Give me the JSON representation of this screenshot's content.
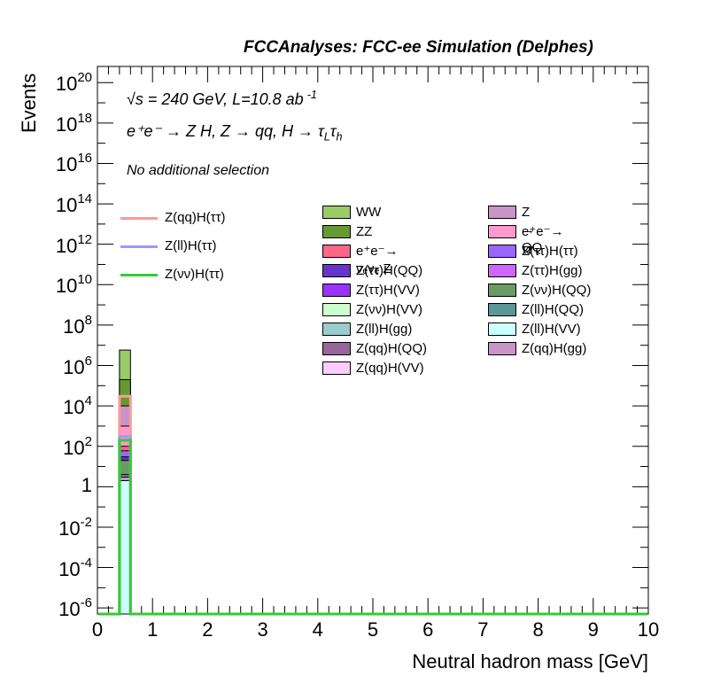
{
  "chart_data": {
    "type": "bar",
    "title": "FCCAnalyses: FCC-ee Simulation (Delphes)",
    "xlabel": "Neutral hadron mass [GeV]",
    "ylabel": "Events",
    "xlim": [
      0,
      10
    ],
    "ylim_log10": [
      -6.3,
      20.8
    ],
    "log_y": true,
    "grid": false,
    "x_ticks": [
      "0",
      "1",
      "2",
      "3",
      "4",
      "5",
      "6",
      "7",
      "8",
      "9",
      "10"
    ],
    "y_ticks": [
      {
        "base": "10",
        "exp": "20",
        "log": 20
      },
      {
        "base": "10",
        "exp": "18",
        "log": 18
      },
      {
        "base": "10",
        "exp": "16",
        "log": 16
      },
      {
        "base": "10",
        "exp": "14",
        "log": 14
      },
      {
        "base": "10",
        "exp": "12",
        "log": 12
      },
      {
        "base": "10",
        "exp": "10",
        "log": 10
      },
      {
        "base": "10",
        "exp": "8",
        "log": 8
      },
      {
        "base": "10",
        "exp": "6",
        "log": 6
      },
      {
        "base": "10",
        "exp": "4",
        "log": 4
      },
      {
        "base": "10",
        "exp": "2",
        "log": 2
      },
      {
        "base": "1",
        "exp": "",
        "log": 0
      },
      {
        "base": "10",
        "exp": "-2",
        "log": -2
      },
      {
        "base": "10",
        "exp": "-4",
        "log": -4
      },
      {
        "base": "10",
        "exp": "-6",
        "log": -6
      }
    ],
    "bin": [
      0.4,
      0.6
    ],
    "stacked_total": 6000000,
    "stack": [
      {
        "name": "Z(qq)H(gg)",
        "color": "#c994c7",
        "value": 3
      },
      {
        "name": "Z(ll)H(VV)",
        "color": "#ccffff",
        "value": 2
      },
      {
        "name": "Z(ll)H(QQ)",
        "color": "#5f9595",
        "value": 4
      },
      {
        "name": "Z(νν)H(QQ)",
        "color": "#6a9a66",
        "value": 20
      },
      {
        "name": "Z(ττ)H(ττ)",
        "color": "#9966ff",
        "value": 60
      },
      {
        "name": "Z(ττ)H(QQ)",
        "color": "#6633cc",
        "value": 30
      },
      {
        "name": "e⁺e⁻→ νₑνₑ Z",
        "color": "#ff6688",
        "value": 100
      },
      {
        "name": "e⁺e⁻→ ττ",
        "color": "#ff99cc",
        "value": 1000
      },
      {
        "name": "Z → QQ",
        "color": "#c994c7",
        "value": 10000
      },
      {
        "name": "ZZ",
        "color": "#669933",
        "value": 200000
      },
      {
        "name": "WW",
        "color": "#99cc66",
        "value": 5800000
      }
    ],
    "signals": [
      {
        "name": "Z(qq)H(ττ)",
        "color": "#ff9999",
        "value": 30000
      },
      {
        "name": "Z(ll)H(ττ)",
        "color": "#9999ff",
        "value": 300
      },
      {
        "name": "Z(νν)H(ττ)",
        "color": "#33cc33",
        "value": 200
      }
    ],
    "legend_signals": [
      {
        "label": "Z(qq)H(ττ)",
        "color": "#ff9999"
      },
      {
        "label": "Z(ll)H(ττ)",
        "color": "#9999ff"
      },
      {
        "label": "Z(νν)H(ττ)",
        "color": "#33cc33"
      }
    ],
    "legend_col1": [
      {
        "label": "WW",
        "color": "#99cc66"
      },
      {
        "label": "ZZ",
        "color": "#669933"
      },
      {
        "label": "e⁺e⁻→ νₑνₑ Z",
        "color": "#ff6688"
      },
      {
        "label": "Z(ττ)H(QQ)",
        "color": "#6633cc"
      },
      {
        "label": "Z(ττ)H(VV)",
        "color": "#9933ff"
      },
      {
        "label": "Z(νν)H(VV)",
        "color": "#ccffcc"
      },
      {
        "label": "Z(ll)H(gg)",
        "color": "#99cccc"
      },
      {
        "label": "Z(qq)H(QQ)",
        "color": "#996699"
      },
      {
        "label": "Z(qq)H(VV)",
        "color": "#ffccff"
      }
    ],
    "legend_col2": [
      {
        "label": "Z → QQ",
        "color": "#c994c7"
      },
      {
        "label": "e⁺e⁻→ ττ",
        "color": "#ff99cc"
      },
      {
        "label": "Z(ττ)H(ττ)",
        "color": "#9966ff"
      },
      {
        "label": "Z(ττ)H(gg)",
        "color": "#cc66ff"
      },
      {
        "label": "Z(νν)H(QQ)",
        "color": "#6a9a66"
      },
      {
        "label": "Z(ll)H(QQ)",
        "color": "#5f9595"
      },
      {
        "label": "Z(ll)H(VV)",
        "color": "#ccffff"
      },
      {
        "label": "Z(qq)H(gg)",
        "color": "#c994c7"
      }
    ],
    "annotations": {
      "energy": "√s = 240 GeV, L=10.8 ab",
      "energy_exp": "-1",
      "process": "e⁺e⁻ → Z H, Z → qq, H → τ",
      "process_sub1": "L",
      "process_tau": "τ",
      "process_sub2": "h",
      "selection": "No additional selection"
    }
  }
}
